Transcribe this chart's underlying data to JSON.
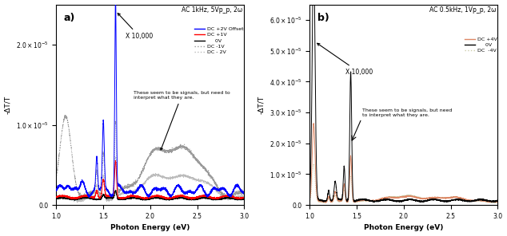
{
  "panel_a": {
    "title": "AC 1kHz, 5Vp_p, 2ω",
    "xlabel": "Photon Energy (eV)",
    "ylabel": "-ΔT/T",
    "xlim": [
      1.0,
      3.0
    ],
    "ylim": [
      0.0,
      2.5e-05
    ],
    "yticks": [
      0.0,
      1e-05,
      2e-05
    ],
    "label": "a)",
    "legend_entries": [
      {
        "label": "DC +2V Offset",
        "color": "blue",
        "linestyle": "solid"
      },
      {
        "label": "DC +1V",
        "color": "red",
        "linestyle": "solid"
      },
      {
        "label": "0V",
        "color": "black",
        "linestyle": "solid"
      },
      {
        "label": "DC -1V",
        "color": "#999999",
        "linestyle": "dotted"
      },
      {
        "label": "DC - 2V",
        "color": "#bbbbbb",
        "linestyle": "dotted"
      }
    ]
  },
  "panel_b": {
    "title": "AC 0.5kHz, 1Vp_p, 2ω",
    "xlabel": "Photon Energy (eV)",
    "ylabel": "-ΔT/T",
    "xlim": [
      1.0,
      3.0
    ],
    "ylim": [
      0.0,
      6.5e-05
    ],
    "yticks": [
      0.0,
      1e-05,
      2e-05,
      3e-05,
      4e-05,
      5e-05,
      6e-05
    ],
    "label": "b)",
    "legend_entries": [
      {
        "label": "DC +4V",
        "color": "#dd8866",
        "linestyle": "solid"
      },
      {
        "label": "0V",
        "color": "black",
        "linestyle": "solid"
      },
      {
        "label": "DC  -4V",
        "color": "#ccccaa",
        "linestyle": "dotted"
      }
    ]
  }
}
